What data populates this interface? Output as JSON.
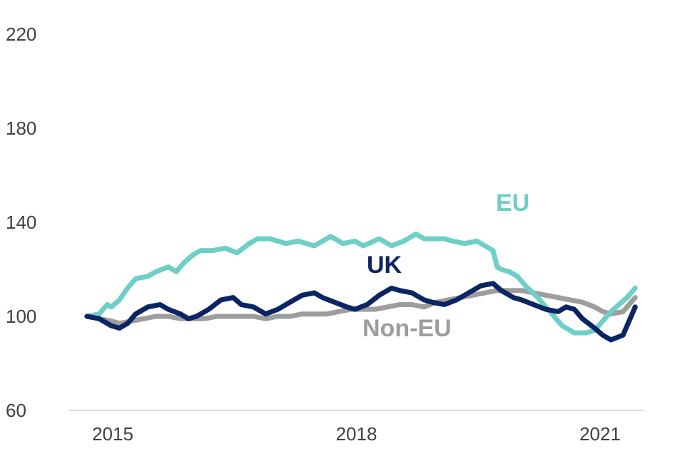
{
  "chart_data": {
    "type": "line",
    "title": "",
    "xlabel": "",
    "ylabel": "",
    "ylim": [
      60,
      220
    ],
    "xlim": [
      2014.7,
      2021.5
    ],
    "y_ticks": [
      60,
      100,
      140,
      180,
      220
    ],
    "y_tick_labels": [
      "60",
      "100",
      "140",
      "180",
      "220"
    ],
    "x_ticks": [
      2015,
      2018,
      2021
    ],
    "x_tick_labels": [
      "2015",
      "2018",
      "2021"
    ],
    "grid": false,
    "legend": "inline labels",
    "colors": {
      "EU": "#6fcfc7",
      "UK": "#0b2463",
      "Non-EU": "#9d9d9d",
      "axis": "#d9d9d9",
      "text": "#404040"
    },
    "series": [
      {
        "name": "EU",
        "label": "EU",
        "color": "#6fcfc7",
        "x": [
          2014.7,
          2014.85,
          2014.95,
          2015.0,
          2015.1,
          2015.2,
          2015.3,
          2015.45,
          2015.55,
          2015.7,
          2015.8,
          2015.9,
          2016.0,
          2016.1,
          2016.25,
          2016.4,
          2016.55,
          2016.7,
          2016.8,
          2016.95,
          2017.05,
          2017.15,
          2017.3,
          2017.5,
          2017.7,
          2017.85,
          2018.0,
          2018.1,
          2018.3,
          2018.45,
          2018.6,
          2018.75,
          2018.85,
          2019.0,
          2019.1,
          2019.2,
          2019.35,
          2019.5,
          2019.6,
          2019.7,
          2019.75,
          2019.8,
          2019.9,
          2020.0,
          2020.1,
          2020.25,
          2020.4,
          2020.55,
          2020.7,
          2020.85,
          2020.95,
          2021.05,
          2021.15,
          2021.25,
          2021.35,
          2021.45
        ],
        "y": [
          100,
          101,
          105,
          104,
          107,
          112,
          116,
          117,
          119,
          121,
          119,
          123,
          126,
          128,
          128,
          129,
          127,
          131,
          133,
          133,
          132,
          131,
          132,
          130,
          134,
          131,
          132,
          130,
          133,
          130,
          132,
          135,
          133,
          133,
          133,
          132,
          131,
          132,
          130,
          128,
          121,
          120,
          119,
          117,
          113,
          108,
          102,
          96,
          93,
          93,
          94,
          98,
          102,
          105,
          108,
          112
        ]
      },
      {
        "name": "UK",
        "label": "UK",
        "color": "#0b2463",
        "x": [
          2014.7,
          2014.85,
          2015.0,
          2015.1,
          2015.2,
          2015.3,
          2015.45,
          2015.6,
          2015.7,
          2015.85,
          2015.95,
          2016.05,
          2016.2,
          2016.35,
          2016.5,
          2016.6,
          2016.75,
          2016.9,
          2017.05,
          2017.2,
          2017.35,
          2017.5,
          2017.6,
          2017.75,
          2017.9,
          2018.0,
          2018.15,
          2018.3,
          2018.45,
          2018.55,
          2018.7,
          2018.85,
          2018.95,
          2019.1,
          2019.25,
          2019.4,
          2019.55,
          2019.7,
          2019.8,
          2019.95,
          2020.05,
          2020.2,
          2020.35,
          2020.5,
          2020.6,
          2020.7,
          2020.8,
          2020.95,
          2021.05,
          2021.15,
          2021.3,
          2021.45
        ],
        "y": [
          100,
          99,
          96,
          95,
          97,
          101,
          104,
          105,
          103,
          101,
          99,
          100,
          103,
          107,
          108,
          105,
          104,
          101,
          103,
          106,
          109,
          110,
          108,
          106,
          104,
          103,
          105,
          109,
          112,
          111,
          110,
          107,
          106,
          105,
          107,
          110,
          113,
          114,
          111,
          108,
          107,
          105,
          103,
          102,
          104,
          103,
          99,
          95,
          92,
          90,
          92,
          104
        ]
      },
      {
        "name": "Non-EU",
        "label": "Non-EU",
        "color": "#9d9d9d",
        "x": [
          2014.7,
          2014.85,
          2015.0,
          2015.1,
          2015.25,
          2015.4,
          2015.55,
          2015.7,
          2015.85,
          2016.0,
          2016.15,
          2016.3,
          2016.45,
          2016.6,
          2016.75,
          2016.9,
          2017.05,
          2017.2,
          2017.35,
          2017.5,
          2017.65,
          2017.8,
          2017.95,
          2018.1,
          2018.25,
          2018.4,
          2018.55,
          2018.7,
          2018.85,
          2019.0,
          2019.15,
          2019.3,
          2019.45,
          2019.6,
          2019.75,
          2019.9,
          2020.05,
          2020.2,
          2020.35,
          2020.5,
          2020.65,
          2020.8,
          2020.95,
          2021.05,
          2021.15,
          2021.3,
          2021.45
        ],
        "y": [
          100,
          99,
          98,
          97,
          98,
          99,
          100,
          100,
          99,
          99,
          99,
          100,
          100,
          100,
          100,
          99,
          100,
          100,
          101,
          101,
          101,
          102,
          103,
          103,
          103,
          104,
          105,
          105,
          104,
          106,
          107,
          108,
          109,
          110,
          111,
          111,
          111,
          110,
          109,
          108,
          107,
          106,
          104,
          102,
          101,
          102,
          108
        ]
      }
    ],
    "annotations": [
      {
        "text": "EU",
        "series": "EU"
      },
      {
        "text": "UK",
        "series": "UK"
      },
      {
        "text": "Non-EU",
        "series": "Non-EU"
      }
    ]
  }
}
